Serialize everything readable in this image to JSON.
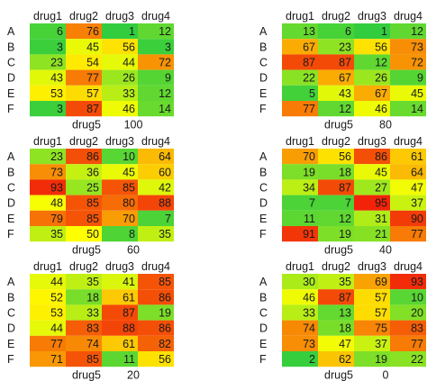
{
  "chart_data": [
    {
      "type": "heatmap",
      "columns": [
        "drug1",
        "drug2",
        "drug3",
        "drug4"
      ],
      "rows": [
        "A",
        "B",
        "C",
        "D",
        "E",
        "F"
      ],
      "values": [
        [
          6,
          76,
          1,
          12
        ],
        [
          3,
          45,
          56,
          3
        ],
        [
          23,
          54,
          44,
          72
        ],
        [
          43,
          77,
          26,
          9
        ],
        [
          53,
          57,
          33,
          12
        ],
        [
          3,
          87,
          46,
          14
        ]
      ],
      "footer_label": "drug5",
      "footer_value": "100"
    },
    {
      "type": "heatmap",
      "columns": [
        "drug1",
        "drug2",
        "drug3",
        "drug4"
      ],
      "rows": [
        "A",
        "B",
        "C",
        "D",
        "E",
        "F"
      ],
      "values": [
        [
          13,
          6,
          1,
          12
        ],
        [
          67,
          23,
          56,
          73
        ],
        [
          87,
          87,
          12,
          72
        ],
        [
          22,
          67,
          26,
          9
        ],
        [
          5,
          43,
          67,
          45
        ],
        [
          77,
          12,
          46,
          14
        ]
      ],
      "footer_label": "drug5",
      "footer_value": "80"
    },
    {
      "type": "heatmap",
      "columns": [
        "drug1",
        "drug2",
        "drug3",
        "drug4"
      ],
      "rows": [
        "A",
        "B",
        "C",
        "D",
        "E",
        "F"
      ],
      "values": [
        [
          23,
          86,
          10,
          64
        ],
        [
          73,
          36,
          45,
          60
        ],
        [
          93,
          25,
          85,
          42
        ],
        [
          48,
          85,
          80,
          88
        ],
        [
          79,
          85,
          70,
          7
        ],
        [
          35,
          50,
          8,
          35
        ]
      ],
      "footer_label": "drug5",
      "footer_value": "60"
    },
    {
      "type": "heatmap",
      "columns": [
        "drug1",
        "drug2",
        "drug3",
        "drug4"
      ],
      "rows": [
        "A",
        "B",
        "C",
        "D",
        "E",
        "F"
      ],
      "values": [
        [
          70,
          56,
          86,
          61
        ],
        [
          19,
          18,
          45,
          64
        ],
        [
          34,
          87,
          27,
          47
        ],
        [
          7,
          7,
          95,
          37
        ],
        [
          11,
          12,
          31,
          90
        ],
        [
          91,
          19,
          21,
          77
        ]
      ],
      "footer_label": "drug5",
      "footer_value": "40"
    },
    {
      "type": "heatmap",
      "columns": [
        "drug1",
        "drug2",
        "drug3",
        "drug4"
      ],
      "rows": [
        "A",
        "B",
        "C",
        "D",
        "E",
        "F"
      ],
      "values": [
        [
          44,
          35,
          41,
          85
        ],
        [
          52,
          18,
          61,
          86
        ],
        [
          53,
          33,
          87,
          19
        ],
        [
          44,
          83,
          88,
          86
        ],
        [
          77,
          74,
          61,
          82
        ],
        [
          71,
          85,
          11,
          56
        ]
      ],
      "footer_label": "drug5",
      "footer_value": "20"
    },
    {
      "type": "heatmap",
      "columns": [
        "drug1",
        "drug2",
        "drug3",
        "drug4"
      ],
      "rows": [
        "A",
        "B",
        "C",
        "D",
        "E",
        "F"
      ],
      "values": [
        [
          30,
          35,
          69,
          93
        ],
        [
          46,
          87,
          57,
          10
        ],
        [
          33,
          13,
          57,
          20
        ],
        [
          74,
          18,
          75,
          83
        ],
        [
          73,
          47,
          37,
          77
        ],
        [
          2,
          62,
          19,
          22
        ]
      ],
      "footer_label": "drug5",
      "footer_value": "0"
    }
  ]
}
